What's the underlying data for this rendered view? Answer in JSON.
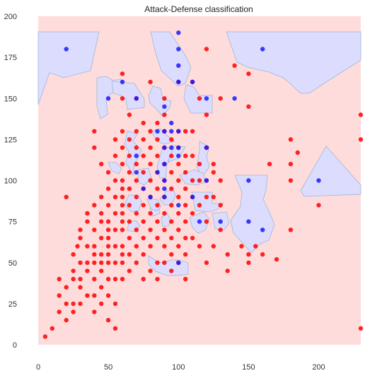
{
  "chart_data": {
    "type": "scatter",
    "title": "Attack-Defense classification",
    "xlabel": "",
    "ylabel": "",
    "xlim": [
      0,
      230
    ],
    "ylim": [
      0,
      200
    ],
    "xticks": [
      0,
      50,
      100,
      150,
      200
    ],
    "yticks": [
      0,
      25,
      50,
      75,
      100,
      125,
      150,
      175,
      200
    ],
    "grid": false,
    "legend": "none",
    "colors": {
      "background_red": "#ffdcdc",
      "background_blue": "#dcdcff",
      "region_edge": "#9db8d0",
      "series_red": "#ff0000",
      "series_blue": "#1a1aff"
    },
    "series": [
      {
        "color": "red",
        "points": [
          [
            5,
            5
          ],
          [
            10,
            10
          ],
          [
            15,
            20
          ],
          [
            15,
            30
          ],
          [
            15,
            40
          ],
          [
            20,
            25
          ],
          [
            20,
            35
          ],
          [
            20,
            15
          ],
          [
            20,
            90
          ],
          [
            25,
            20
          ],
          [
            25,
            25
          ],
          [
            25,
            40
          ],
          [
            25,
            45
          ],
          [
            25,
            55
          ],
          [
            28,
            60
          ],
          [
            30,
            25
          ],
          [
            30,
            35
          ],
          [
            30,
            40
          ],
          [
            30,
            50
          ],
          [
            30,
            65
          ],
          [
            30,
            70
          ],
          [
            35,
            30
          ],
          [
            35,
            45
          ],
          [
            35,
            50
          ],
          [
            35,
            60
          ],
          [
            35,
            75
          ],
          [
            35,
            80
          ],
          [
            40,
            20
          ],
          [
            40,
            30
          ],
          [
            40,
            40
          ],
          [
            40,
            50
          ],
          [
            40,
            55
          ],
          [
            40,
            60
          ],
          [
            40,
            70
          ],
          [
            40,
            85
          ],
          [
            40,
            120
          ],
          [
            40,
            130
          ],
          [
            45,
            25
          ],
          [
            45,
            35
          ],
          [
            45,
            45
          ],
          [
            45,
            50
          ],
          [
            45,
            55
          ],
          [
            45,
            65
          ],
          [
            45,
            75
          ],
          [
            45,
            80
          ],
          [
            45,
            90
          ],
          [
            45,
            110
          ],
          [
            50,
            15
          ],
          [
            50,
            30
          ],
          [
            50,
            40
          ],
          [
            50,
            50
          ],
          [
            50,
            55
          ],
          [
            50,
            60
          ],
          [
            50,
            65
          ],
          [
            50,
            70
          ],
          [
            50,
            75
          ],
          [
            50,
            85
          ],
          [
            50,
            95
          ],
          [
            50,
            105
          ],
          [
            55,
            10
          ],
          [
            55,
            25
          ],
          [
            55,
            40
          ],
          [
            55,
            50
          ],
          [
            55,
            60
          ],
          [
            55,
            70
          ],
          [
            55,
            80
          ],
          [
            55,
            90
          ],
          [
            55,
            100
          ],
          [
            55,
            115
          ],
          [
            55,
            125
          ],
          [
            60,
            40
          ],
          [
            60,
            50
          ],
          [
            60,
            55
          ],
          [
            60,
            60
          ],
          [
            60,
            70
          ],
          [
            60,
            75
          ],
          [
            60,
            80
          ],
          [
            60,
            85
          ],
          [
            60,
            90
          ],
          [
            60,
            95
          ],
          [
            60,
            100
          ],
          [
            60,
            110
          ],
          [
            60,
            120
          ],
          [
            60,
            130
          ],
          [
            60,
            150
          ],
          [
            60,
            165
          ],
          [
            65,
            45
          ],
          [
            65,
            55
          ],
          [
            65,
            65
          ],
          [
            65,
            75
          ],
          [
            65,
            85
          ],
          [
            65,
            95
          ],
          [
            65,
            105
          ],
          [
            65,
            115
          ],
          [
            65,
            125
          ],
          [
            65,
            140
          ],
          [
            70,
            50
          ],
          [
            70,
            60
          ],
          [
            70,
            70
          ],
          [
            70,
            80
          ],
          [
            70,
            90
          ],
          [
            70,
            100
          ],
          [
            70,
            110
          ],
          [
            70,
            120
          ],
          [
            70,
            130
          ],
          [
            70,
            150
          ],
          [
            75,
            40
          ],
          [
            75,
            55
          ],
          [
            75,
            65
          ],
          [
            75,
            75
          ],
          [
            75,
            85
          ],
          [
            75,
            95
          ],
          [
            75,
            105
          ],
          [
            75,
            115
          ],
          [
            75,
            125
          ],
          [
            75,
            135
          ],
          [
            80,
            45
          ],
          [
            80,
            60
          ],
          [
            80,
            70
          ],
          [
            80,
            80
          ],
          [
            80,
            90
          ],
          [
            80,
            100
          ],
          [
            80,
            110
          ],
          [
            80,
            120
          ],
          [
            80,
            130
          ],
          [
            80,
            160
          ],
          [
            85,
            40
          ],
          [
            85,
            50
          ],
          [
            85,
            65
          ],
          [
            85,
            75
          ],
          [
            85,
            85
          ],
          [
            85,
            95
          ],
          [
            85,
            105
          ],
          [
            85,
            115
          ],
          [
            85,
            125
          ],
          [
            85,
            135
          ],
          [
            90,
            50
          ],
          [
            90,
            60
          ],
          [
            90,
            70
          ],
          [
            90,
            80
          ],
          [
            90,
            90
          ],
          [
            90,
            100
          ],
          [
            90,
            110
          ],
          [
            90,
            120
          ],
          [
            90,
            130
          ],
          [
            90,
            140
          ],
          [
            90,
            150
          ],
          [
            95,
            45
          ],
          [
            95,
            55
          ],
          [
            95,
            65
          ],
          [
            95,
            75
          ],
          [
            95,
            85
          ],
          [
            95,
            95
          ],
          [
            95,
            105
          ],
          [
            95,
            115
          ],
          [
            95,
            125
          ],
          [
            100,
            50
          ],
          [
            100,
            60
          ],
          [
            100,
            70
          ],
          [
            100,
            80
          ],
          [
            100,
            90
          ],
          [
            100,
            100
          ],
          [
            100,
            110
          ],
          [
            100,
            120
          ],
          [
            100,
            130
          ],
          [
            100,
            160
          ],
          [
            105,
            40
          ],
          [
            105,
            55
          ],
          [
            105,
            65
          ],
          [
            105,
            75
          ],
          [
            105,
            85
          ],
          [
            105,
            95
          ],
          [
            105,
            105
          ],
          [
            105,
            115
          ],
          [
            105,
            130
          ],
          [
            110,
            65
          ],
          [
            110,
            80
          ],
          [
            110,
            90
          ],
          [
            110,
            100
          ],
          [
            110,
            115
          ],
          [
            110,
            130
          ],
          [
            110,
            160
          ],
          [
            115,
            60
          ],
          [
            115,
            85
          ],
          [
            115,
            100
          ],
          [
            115,
            110
          ],
          [
            115,
            150
          ],
          [
            120,
            50
          ],
          [
            120,
            75
          ],
          [
            120,
            90
          ],
          [
            120,
            100
          ],
          [
            120,
            120
          ],
          [
            120,
            140
          ],
          [
            120,
            180
          ],
          [
            125,
            60
          ],
          [
            125,
            90
          ],
          [
            125,
            105
          ],
          [
            125,
            110
          ],
          [
            130,
            70
          ],
          [
            130,
            85
          ],
          [
            130,
            100
          ],
          [
            130,
            150
          ],
          [
            135,
            45
          ],
          [
            135,
            55
          ],
          [
            140,
            170
          ],
          [
            145,
            60
          ],
          [
            150,
            50
          ],
          [
            150,
            55
          ],
          [
            150,
            145
          ],
          [
            150,
            165
          ],
          [
            155,
            60
          ],
          [
            160,
            55
          ],
          [
            165,
            110
          ],
          [
            170,
            52
          ],
          [
            180,
            70
          ],
          [
            180,
            100
          ],
          [
            180,
            110
          ],
          [
            180,
            125
          ],
          [
            185,
            117
          ],
          [
            200,
            85
          ],
          [
            230,
            10
          ],
          [
            230,
            125
          ],
          [
            230,
            140
          ]
        ]
      },
      {
        "color": "blue",
        "points": [
          [
            20,
            180
          ],
          [
            50,
            150
          ],
          [
            60,
            160
          ],
          [
            70,
            150
          ],
          [
            70,
            115
          ],
          [
            70,
            105
          ],
          [
            75,
            95
          ],
          [
            80,
            90
          ],
          [
            85,
            105
          ],
          [
            85,
            130
          ],
          [
            90,
            130
          ],
          [
            90,
            120
          ],
          [
            90,
            145
          ],
          [
            90,
            110
          ],
          [
            90,
            100
          ],
          [
            90,
            95
          ],
          [
            90,
            90
          ],
          [
            95,
            130
          ],
          [
            95,
            120
          ],
          [
            95,
            135
          ],
          [
            100,
            190
          ],
          [
            100,
            180
          ],
          [
            100,
            170
          ],
          [
            100,
            160
          ],
          [
            100,
            130
          ],
          [
            100,
            120
          ],
          [
            100,
            115
          ],
          [
            100,
            85
          ],
          [
            100,
            50
          ],
          [
            110,
            90
          ],
          [
            110,
            160
          ],
          [
            120,
            150
          ],
          [
            120,
            120
          ],
          [
            120,
            100
          ],
          [
            115,
            75
          ],
          [
            130,
            75
          ],
          [
            140,
            150
          ],
          [
            150,
            100
          ],
          [
            150,
            75
          ],
          [
            160,
            70
          ],
          [
            160,
            180
          ],
          [
            200,
            100
          ]
        ]
      }
    ],
    "x_tick_labels": [
      "0",
      "50",
      "100",
      "150",
      "200"
    ],
    "y_tick_labels": [
      "0",
      "25",
      "50",
      "75",
      "100",
      "125",
      "150",
      "175",
      "200"
    ]
  }
}
